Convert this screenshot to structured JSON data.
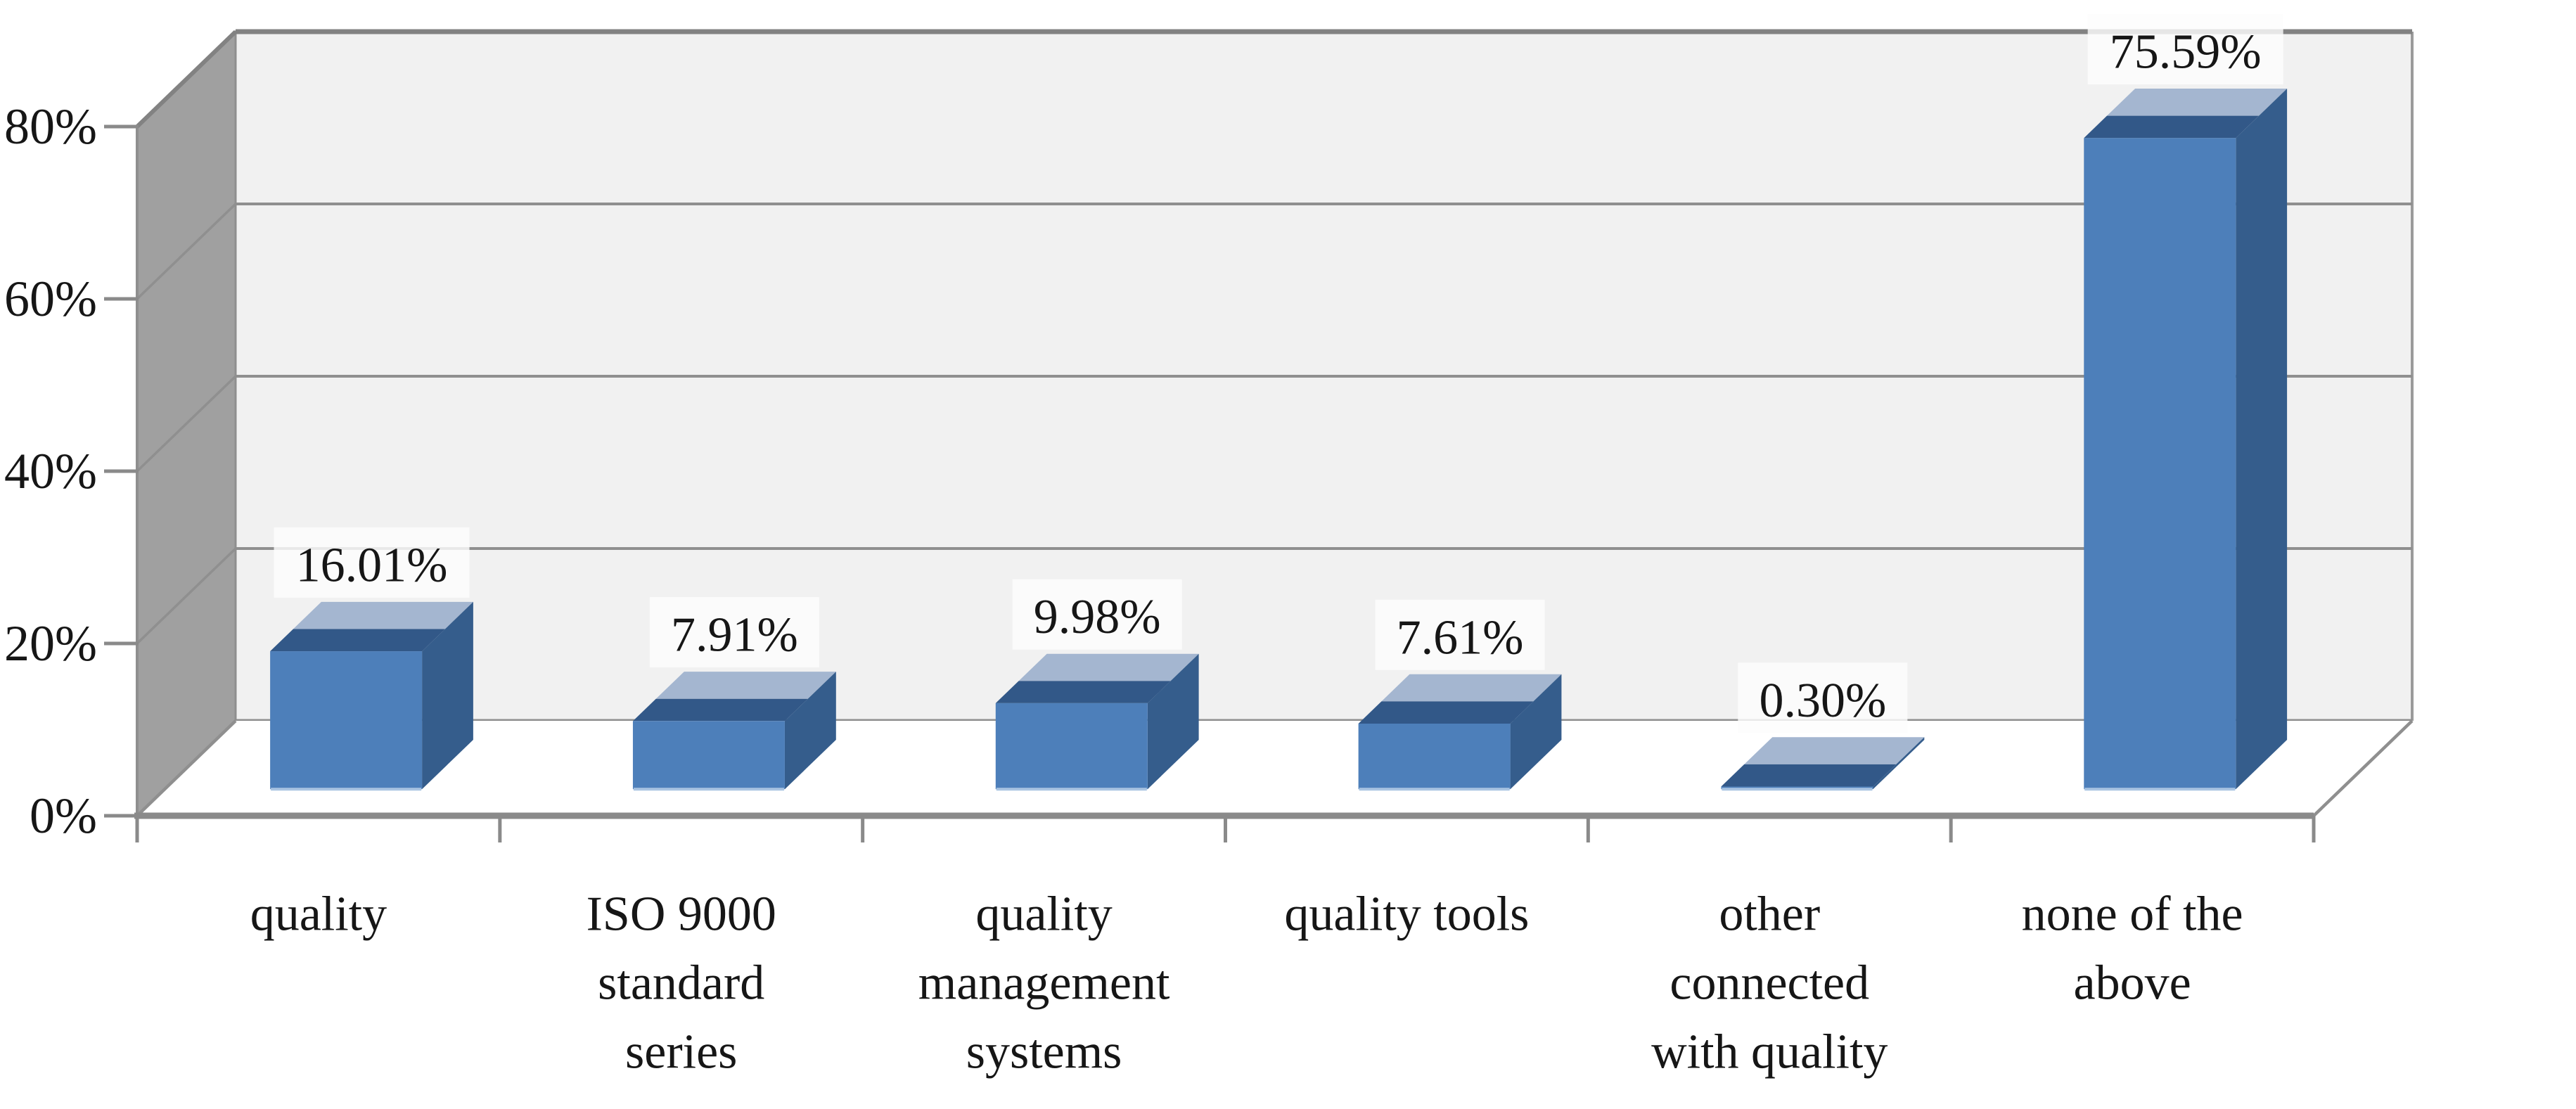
{
  "chart_data": {
    "type": "bar",
    "style": "3d-column",
    "title": "",
    "xlabel": "",
    "ylabel": "",
    "categories": [
      "quality",
      "ISO 9000 standard series",
      "quality management systems",
      "quality tools",
      "other connected with quality",
      "none of the above"
    ],
    "category_label_lines": [
      [
        "quality"
      ],
      [
        "ISO 9000",
        "standard",
        "series"
      ],
      [
        "quality",
        "management",
        "systems"
      ],
      [
        "quality tools"
      ],
      [
        "other",
        "connected",
        "with quality"
      ],
      [
        "none of the",
        "above"
      ]
    ],
    "values": [
      16.01,
      7.91,
      9.98,
      7.61,
      0.3,
      75.59
    ],
    "data_labels": [
      "16.01%",
      "7.91%",
      "9.98%",
      "7.61%",
      "0.30%",
      "75.59%"
    ],
    "ylim": [
      0,
      80
    ],
    "ytick_step": 20,
    "ytick_labels": [
      "0%",
      "20%",
      "40%",
      "60%",
      "80%"
    ],
    "grid": true,
    "legend": false
  },
  "colors": {
    "bar_front": "#4d7fba",
    "bar_side": "#355d8c",
    "bar_top_front": "#325888",
    "bar_top_back": "#a4b6d0",
    "bar_bottom_edge": "#a9c4e2",
    "wall_back": "#f1f1f1",
    "wall_left": "#a0a0a0",
    "floor": "#ffffff",
    "gridline": "#8f8f8f",
    "edge_strong": "#828282",
    "axis": "#8a8a8a",
    "text": "#161616",
    "label_bg": "rgba(252,252,252,0.82)"
  }
}
